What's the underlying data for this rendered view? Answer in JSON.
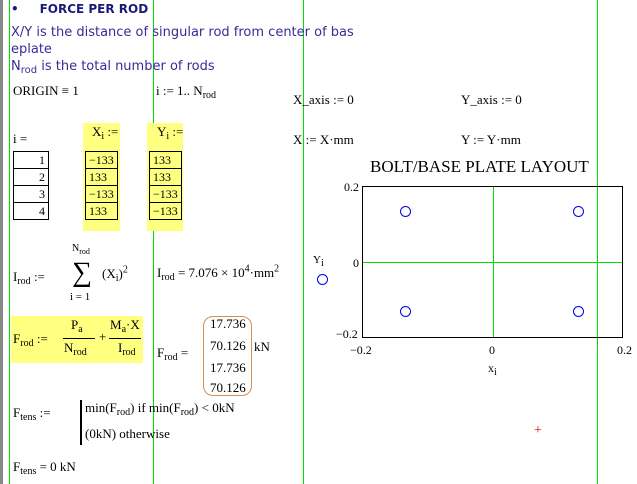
{
  "heading": {
    "bullet": "•",
    "title": "FORCE PER ROD"
  },
  "desc1": "X/Y is the distance of singular rod from center of bas",
  "desc1b": "eplate",
  "desc2_sym": "N",
  "desc2_sub": "rod",
  "desc2": " is the total number of rods",
  "origin": "ORIGIN ≡ 1",
  "range": {
    "lhs": "i := 1.. N",
    "sub": "rod"
  },
  "x_axis": "X_axis := 0",
  "y_axis": "Y_axis := 0",
  "x_def": "X := X·mm",
  "y_def": "Y := Y·mm",
  "i_label": "i =",
  "i_values": [
    "1",
    "2",
    "3",
    "4"
  ],
  "x_label": "X",
  "x_label_sub": "i",
  " assign": ":=",
  "y_label": "Y",
  "y_label_sub": "i",
  "assign": ":=",
  "x_values": [
    "−133",
    "133",
    "−133",
    "133"
  ],
  "y_values": [
    "133",
    "133",
    "−133",
    "−133"
  ],
  "irod_def": {
    "lhs": "I",
    "sub": "rod",
    "op": ":=",
    "sum_top": "N",
    "sum_top_sub": "rod",
    "sum": "∑",
    "sum_bottom": "i = 1",
    "term": "(X",
    "term_sub": "i",
    "term_end": ")",
    "pow": "2"
  },
  "irod_val": {
    "lhs": "I",
    "sub": "rod",
    "eq": "= 7.076 × 10",
    "exp": "4",
    "unit": "·mm",
    "unit_pow": "2"
  },
  "frod_def": {
    "lhs": "F",
    "sub": "rod",
    "op": ":=",
    "n1": "P",
    "n1_sub": "a",
    "d1": "N",
    "d1_sub": "rod",
    "plus": "+",
    "n2": "M",
    "n2_sub": "a",
    "n2_end": "·X",
    "d2": "I",
    "d2_sub": "rod"
  },
  "frod_val": {
    "lhs": "F",
    "sub": "rod",
    "eq": "=",
    "values": [
      "17.736",
      "70.126",
      "17.736",
      "70.126"
    ],
    "unit": "kN"
  },
  "ftens_def": {
    "lhs": "F",
    "sub": "tens",
    "op": ":=",
    "line1": "min(F",
    "line1_sub": "rod",
    "line1_end": ")   if   min(F",
    "line1_end_sub": "rod",
    "line1_tail": ") < 0kN",
    "line2": "(0kN)   otherwise"
  },
  "ftens_val": {
    "lhs": "F",
    "sub": "tens",
    "eq": "= 0 kN"
  },
  "chart_data": {
    "type": "scatter",
    "title": "BOLT/BASE PLATE  LAYOUT",
    "xlabel": "x",
    "xlabel_sub": "i",
    "ylabel": "Y",
    "ylabel_sub": "i",
    "xlim": [
      -0.2,
      0.2
    ],
    "ylim": [
      -0.2,
      0.2
    ],
    "xticks": [
      "−0.2",
      "0",
      "0.2"
    ],
    "yticks": [
      "0.2",
      "0",
      "−0.2"
    ],
    "x": [
      -0.133,
      0.133,
      -0.133,
      0.133
    ],
    "y": [
      0.133,
      0.133,
      -0.133,
      -0.133
    ],
    "marker": "circle",
    "marker_color": "#0000ee",
    "axis_line_color": "#00dd00"
  }
}
